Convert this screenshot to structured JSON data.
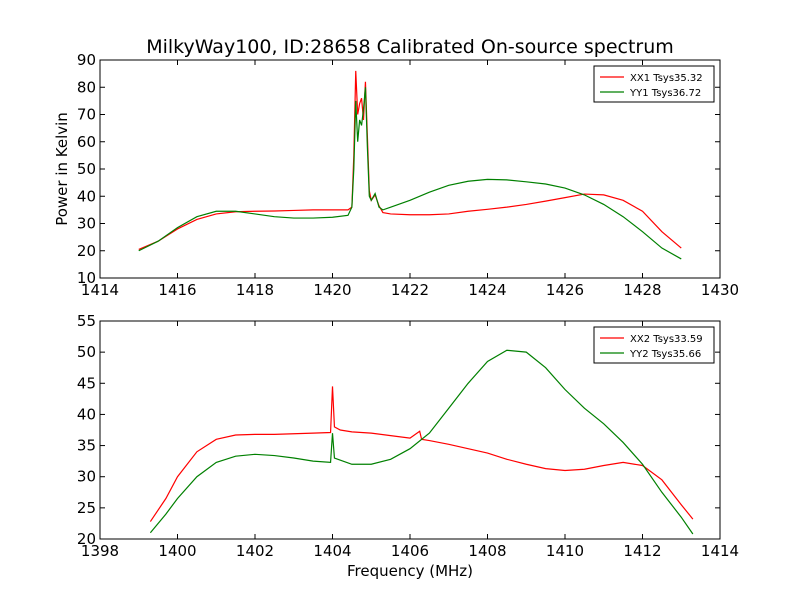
{
  "chart_data": [
    {
      "type": "line",
      "title": "MilkyWay100, ID:28658 Calibrated On-source spectrum",
      "xlabel": "",
      "ylabel": "Power in Kelvin",
      "xlim": [
        1414,
        1430
      ],
      "ylim": [
        10,
        90
      ],
      "xticks": [
        "1414",
        "1416",
        "1418",
        "1420",
        "1422",
        "1424",
        "1426",
        "1428",
        "1430"
      ],
      "yticks": [
        "10",
        "20",
        "30",
        "40",
        "50",
        "60",
        "70",
        "80",
        "90"
      ],
      "legend_position": "top-right",
      "grid": false,
      "series": [
        {
          "name": "XX1 Tsys35.32",
          "color": "#ff0000",
          "points": [
            [
              1415.0,
              20.5
            ],
            [
              1415.5,
              23.5
            ],
            [
              1416.0,
              28.0
            ],
            [
              1416.5,
              31.5
            ],
            [
              1417.0,
              33.5
            ],
            [
              1417.5,
              34.3
            ],
            [
              1418.0,
              34.5
            ],
            [
              1418.5,
              34.6
            ],
            [
              1419.0,
              34.8
            ],
            [
              1419.5,
              35.0
            ],
            [
              1420.0,
              35.0
            ],
            [
              1420.4,
              35.0
            ],
            [
              1420.5,
              36.0
            ],
            [
              1420.55,
              55.0
            ],
            [
              1420.6,
              86.0
            ],
            [
              1420.65,
              70.0
            ],
            [
              1420.7,
              74.0
            ],
            [
              1420.75,
              76.0
            ],
            [
              1420.8,
              68.0
            ],
            [
              1420.85,
              82.0
            ],
            [
              1420.9,
              62.0
            ],
            [
              1420.95,
              42.0
            ],
            [
              1421.0,
              38.5
            ],
            [
              1421.1,
              40.5
            ],
            [
              1421.2,
              36.5
            ],
            [
              1421.3,
              34.0
            ],
            [
              1421.5,
              33.5
            ],
            [
              1422.0,
              33.2
            ],
            [
              1422.5,
              33.2
            ],
            [
              1423.0,
              33.5
            ],
            [
              1423.5,
              34.5
            ],
            [
              1424.0,
              35.2
            ],
            [
              1424.5,
              36.0
            ],
            [
              1425.0,
              37.0
            ],
            [
              1425.5,
              38.2
            ],
            [
              1426.0,
              39.5
            ],
            [
              1426.5,
              40.8
            ],
            [
              1427.0,
              40.5
            ],
            [
              1427.5,
              38.5
            ],
            [
              1428.0,
              34.5
            ],
            [
              1428.5,
              27.0
            ],
            [
              1429.0,
              21.0
            ]
          ]
        },
        {
          "name": "YY1 Tsys36.72",
          "color": "#008000",
          "points": [
            [
              1415.0,
              20.0
            ],
            [
              1415.5,
              23.5
            ],
            [
              1416.0,
              28.5
            ],
            [
              1416.5,
              32.5
            ],
            [
              1417.0,
              34.5
            ],
            [
              1417.5,
              34.5
            ],
            [
              1418.0,
              33.5
            ],
            [
              1418.5,
              32.5
            ],
            [
              1419.0,
              32.0
            ],
            [
              1419.5,
              32.0
            ],
            [
              1420.0,
              32.3
            ],
            [
              1420.4,
              33.0
            ],
            [
              1420.5,
              36.0
            ],
            [
              1420.55,
              50.0
            ],
            [
              1420.6,
              75.0
            ],
            [
              1420.65,
              60.0
            ],
            [
              1420.7,
              68.0
            ],
            [
              1420.75,
              66.0
            ],
            [
              1420.8,
              72.0
            ],
            [
              1420.85,
              80.0
            ],
            [
              1420.9,
              58.0
            ],
            [
              1420.95,
              40.0
            ],
            [
              1421.0,
              38.5
            ],
            [
              1421.1,
              41.0
            ],
            [
              1421.2,
              36.0
            ],
            [
              1421.3,
              35.0
            ],
            [
              1421.5,
              36.0
            ],
            [
              1422.0,
              38.5
            ],
            [
              1422.5,
              41.5
            ],
            [
              1423.0,
              44.0
            ],
            [
              1423.5,
              45.5
            ],
            [
              1424.0,
              46.2
            ],
            [
              1424.5,
              46.0
            ],
            [
              1425.0,
              45.3
            ],
            [
              1425.5,
              44.5
            ],
            [
              1426.0,
              43.0
            ],
            [
              1426.5,
              40.5
            ],
            [
              1427.0,
              37.0
            ],
            [
              1427.5,
              32.5
            ],
            [
              1428.0,
              27.0
            ],
            [
              1428.5,
              21.0
            ],
            [
              1429.0,
              17.0
            ]
          ]
        }
      ]
    },
    {
      "type": "line",
      "title": "",
      "xlabel": "Frequency (MHz)",
      "ylabel": "",
      "xlim": [
        1398,
        1414
      ],
      "ylim": [
        20,
        55
      ],
      "xticks": [
        "1398",
        "1400",
        "1402",
        "1404",
        "1406",
        "1408",
        "1410",
        "1412",
        "1414"
      ],
      "yticks": [
        "20",
        "25",
        "30",
        "35",
        "40",
        "45",
        "50",
        "55"
      ],
      "legend_position": "top-right",
      "grid": false,
      "series": [
        {
          "name": "XX2 Tsys33.59",
          "color": "#ff0000",
          "points": [
            [
              1399.3,
              22.8
            ],
            [
              1399.7,
              26.5
            ],
            [
              1400.0,
              30.0
            ],
            [
              1400.5,
              34.0
            ],
            [
              1401.0,
              36.0
            ],
            [
              1401.5,
              36.7
            ],
            [
              1402.0,
              36.8
            ],
            [
              1402.5,
              36.8
            ],
            [
              1403.0,
              36.9
            ],
            [
              1403.5,
              37.0
            ],
            [
              1403.95,
              37.1
            ],
            [
              1404.0,
              44.5
            ],
            [
              1404.05,
              38.0
            ],
            [
              1404.2,
              37.5
            ],
            [
              1404.5,
              37.2
            ],
            [
              1405.0,
              37.0
            ],
            [
              1405.5,
              36.6
            ],
            [
              1406.0,
              36.2
            ],
            [
              1406.25,
              37.3
            ],
            [
              1406.3,
              36.0
            ],
            [
              1406.5,
              35.8
            ],
            [
              1407.0,
              35.2
            ],
            [
              1407.5,
              34.5
            ],
            [
              1408.0,
              33.8
            ],
            [
              1408.5,
              32.8
            ],
            [
              1409.0,
              32.0
            ],
            [
              1409.5,
              31.3
            ],
            [
              1410.0,
              31.0
            ],
            [
              1410.5,
              31.2
            ],
            [
              1411.0,
              31.8
            ],
            [
              1411.5,
              32.3
            ],
            [
              1412.0,
              31.8
            ],
            [
              1412.5,
              29.5
            ],
            [
              1413.0,
              25.5
            ],
            [
              1413.3,
              23.2
            ]
          ]
        },
        {
          "name": "YY2 Tsys35.66",
          "color": "#008000",
          "points": [
            [
              1399.3,
              21.0
            ],
            [
              1399.7,
              24.0
            ],
            [
              1400.0,
              26.5
            ],
            [
              1400.5,
              30.0
            ],
            [
              1401.0,
              32.3
            ],
            [
              1401.5,
              33.3
            ],
            [
              1402.0,
              33.6
            ],
            [
              1402.5,
              33.4
            ],
            [
              1403.0,
              33.0
            ],
            [
              1403.5,
              32.5
            ],
            [
              1403.95,
              32.3
            ],
            [
              1404.0,
              37.0
            ],
            [
              1404.05,
              33.0
            ],
            [
              1404.5,
              32.0
            ],
            [
              1405.0,
              32.0
            ],
            [
              1405.5,
              32.8
            ],
            [
              1406.0,
              34.5
            ],
            [
              1406.5,
              37.0
            ],
            [
              1407.0,
              41.0
            ],
            [
              1407.5,
              45.0
            ],
            [
              1408.0,
              48.5
            ],
            [
              1408.5,
              50.3
            ],
            [
              1409.0,
              50.0
            ],
            [
              1409.5,
              47.5
            ],
            [
              1410.0,
              44.0
            ],
            [
              1410.5,
              41.0
            ],
            [
              1411.0,
              38.5
            ],
            [
              1411.5,
              35.5
            ],
            [
              1412.0,
              32.0
            ],
            [
              1412.5,
              27.5
            ],
            [
              1413.0,
              23.5
            ],
            [
              1413.3,
              20.8
            ]
          ]
        }
      ]
    }
  ]
}
